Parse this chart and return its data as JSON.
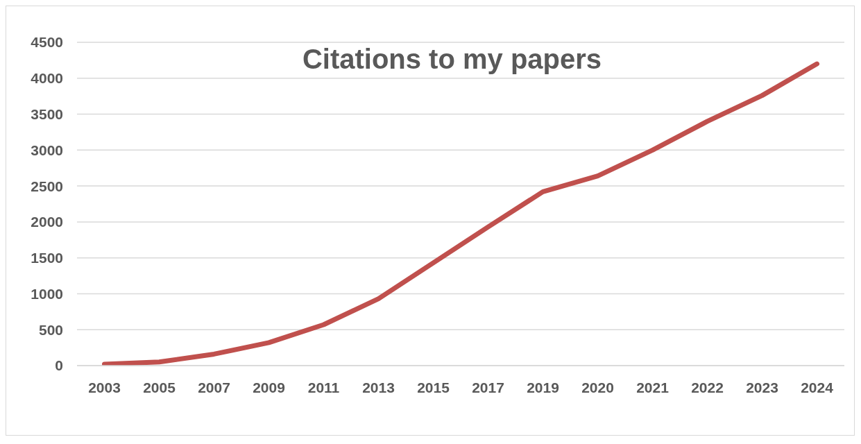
{
  "chart_data": {
    "type": "line",
    "title": "Citations to my papers",
    "categories": [
      "2003",
      "2005",
      "2007",
      "2009",
      "2011",
      "2013",
      "2015",
      "2017",
      "2019",
      "2020",
      "2021",
      "2022",
      "2023",
      "2024"
    ],
    "series": [
      {
        "color": "#c0504d",
        "values": [
          20,
          50,
          160,
          320,
          570,
          930,
          1430,
          1930,
          2420,
          2640,
          3000,
          3400,
          3760,
          4200
        ]
      }
    ],
    "ylim": [
      0,
      4500
    ],
    "yticks": [
      0,
      500,
      1000,
      1500,
      2000,
      2500,
      3000,
      3500,
      4000,
      4500
    ],
    "grid": "y",
    "marker": "none",
    "line_style": "solid"
  }
}
